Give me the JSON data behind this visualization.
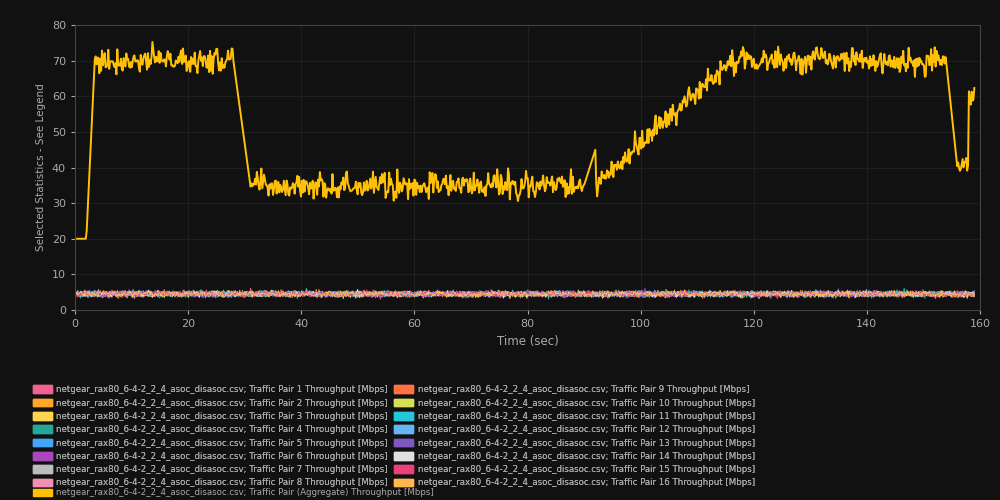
{
  "title": "",
  "xlabel": "Time (sec)",
  "ylabel": "Selected Statistics - See Legend",
  "xlim": [
    0,
    160
  ],
  "ylim": [
    0,
    80
  ],
  "yticks": [
    0,
    10,
    20,
    30,
    40,
    50,
    60,
    70,
    80
  ],
  "xticks": [
    0,
    20,
    40,
    60,
    80,
    100,
    120,
    140,
    160
  ],
  "bg_color": "#111111",
  "grid_color": "#2a2a2a",
  "text_color": "#aaaaaa",
  "pair_colors": [
    "#f06292",
    "#ffa726",
    "#ffd54f",
    "#26a69a",
    "#42a5f5",
    "#ab47bc",
    "#bdbdbd",
    "#f48fb1",
    "#ff7043",
    "#d4e157",
    "#26c6da",
    "#64b5f6",
    "#7e57c2",
    "#e0e0e0",
    "#ec407a",
    "#ffb74d"
  ],
  "aggregate_color": "#ffc107",
  "legend_labels": [
    "netgear_rax80_6-4-2_2_4_asoc_disasoc.csv; Traffic Pair 1 Throughput [Mbps]",
    "netgear_rax80_6-4-2_2_4_asoc_disasoc.csv; Traffic Pair 2 Throughput [Mbps]",
    "netgear_rax80_6-4-2_2_4_asoc_disasoc.csv; Traffic Pair 3 Throughput [Mbps]",
    "netgear_rax80_6-4-2_2_4_asoc_disasoc.csv; Traffic Pair 4 Throughput [Mbps]",
    "netgear_rax80_6-4-2_2_4_asoc_disasoc.csv; Traffic Pair 5 Throughput [Mbps]",
    "netgear_rax80_6-4-2_2_4_asoc_disasoc.csv; Traffic Pair 6 Throughput [Mbps]",
    "netgear_rax80_6-4-2_2_4_asoc_disasoc.csv; Traffic Pair 7 Throughput [Mbps]",
    "netgear_rax80_6-4-2_2_4_asoc_disasoc.csv; Traffic Pair 8 Throughput [Mbps]",
    "netgear_rax80_6-4-2_2_4_asoc_disasoc.csv; Traffic Pair 9 Throughput [Mbps]",
    "netgear_rax80_6-4-2_2_4_asoc_disasoc.csv; Traffic Pair 10 Throughput [Mbps]",
    "netgear_rax80_6-4-2_2_4_asoc_disasoc.csv; Traffic Pair 11 Throughput [Mbps]",
    "netgear_rax80_6-4-2_2_4_asoc_disasoc.csv; Traffic Pair 12 Throughput [Mbps]",
    "netgear_rax80_6-4-2_2_4_asoc_disasoc.csv; Traffic Pair 13 Throughput [Mbps]",
    "netgear_rax80_6-4-2_2_4_asoc_disasoc.csv; Traffic Pair 14 Throughput [Mbps]",
    "netgear_rax80_6-4-2_2_4_asoc_disasoc.csv; Traffic Pair 15 Throughput [Mbps]",
    "netgear_rax80_6-4-2_2_4_asoc_disasoc.csv; Traffic Pair 16 Throughput [Mbps]",
    "netgear_rax80_6-4-2_2_4_asoc_disasoc.csv; Traffic Pair (Aggregate) Throughput [Mbps]"
  ]
}
